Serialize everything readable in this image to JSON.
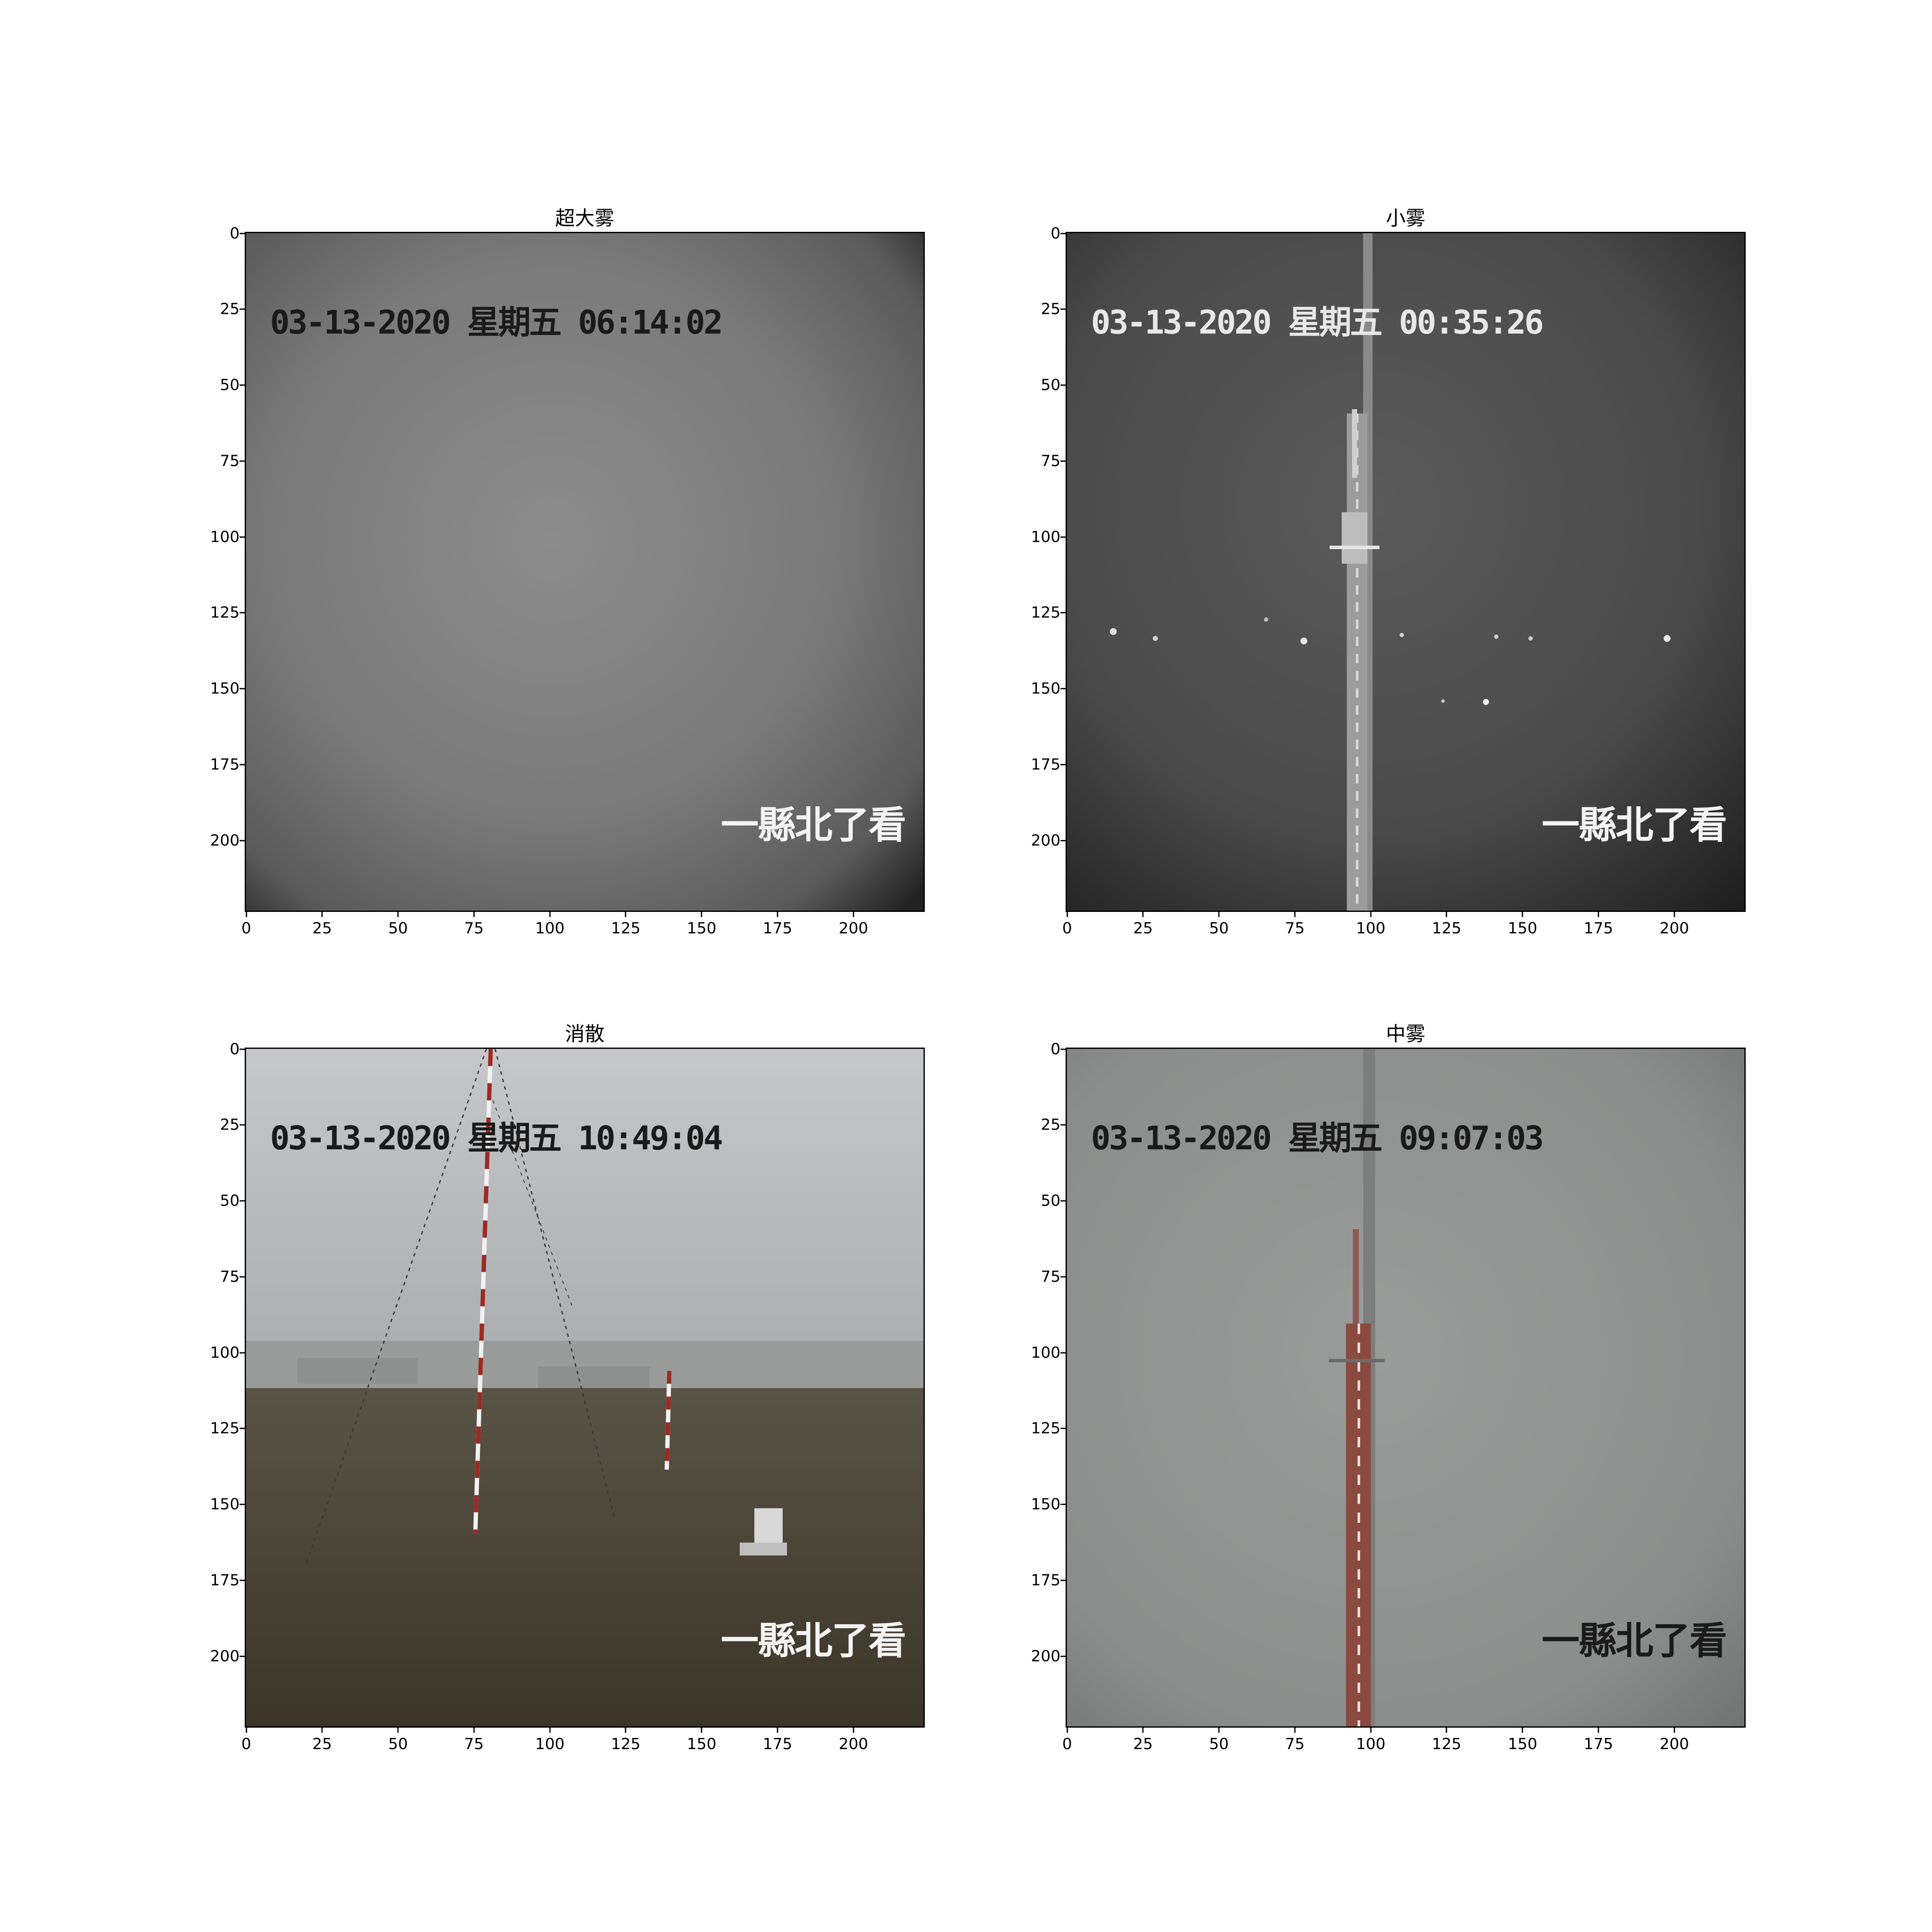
{
  "panels": [
    {
      "title": "超大雾",
      "timestamp": "03-13-2020 星期五 06:14:02",
      "location": "一縣北了看",
      "x_ticks": [
        "0",
        "25",
        "50",
        "75",
        "100",
        "125",
        "150",
        "175",
        "200"
      ],
      "y_ticks": [
        "0",
        "25",
        "50",
        "75",
        "100",
        "125",
        "150",
        "175",
        "200"
      ]
    },
    {
      "title": "小雾",
      "timestamp": "03-13-2020 星期五 00:35:26",
      "location": "一縣北了看",
      "x_ticks": [
        "0",
        "25",
        "50",
        "75",
        "100",
        "125",
        "150",
        "175",
        "200"
      ],
      "y_ticks": [
        "0",
        "25",
        "50",
        "75",
        "100",
        "125",
        "150",
        "175",
        "200"
      ]
    },
    {
      "title": "消散",
      "timestamp": "03-13-2020 星期五 10:49:04",
      "location": "一縣北了看",
      "x_ticks": [
        "0",
        "25",
        "50",
        "75",
        "100",
        "125",
        "150",
        "175",
        "200"
      ],
      "y_ticks": [
        "0",
        "25",
        "50",
        "75",
        "100",
        "125",
        "150",
        "175",
        "200"
      ]
    },
    {
      "title": "中雾",
      "timestamp": "03-13-2020 星期五 09:07:03",
      "location": "一縣北了看",
      "x_ticks": [
        "0",
        "25",
        "50",
        "75",
        "100",
        "125",
        "150",
        "175",
        "200"
      ],
      "y_ticks": [
        "0",
        "25",
        "50",
        "75",
        "100",
        "125",
        "150",
        "175",
        "200"
      ]
    }
  ]
}
